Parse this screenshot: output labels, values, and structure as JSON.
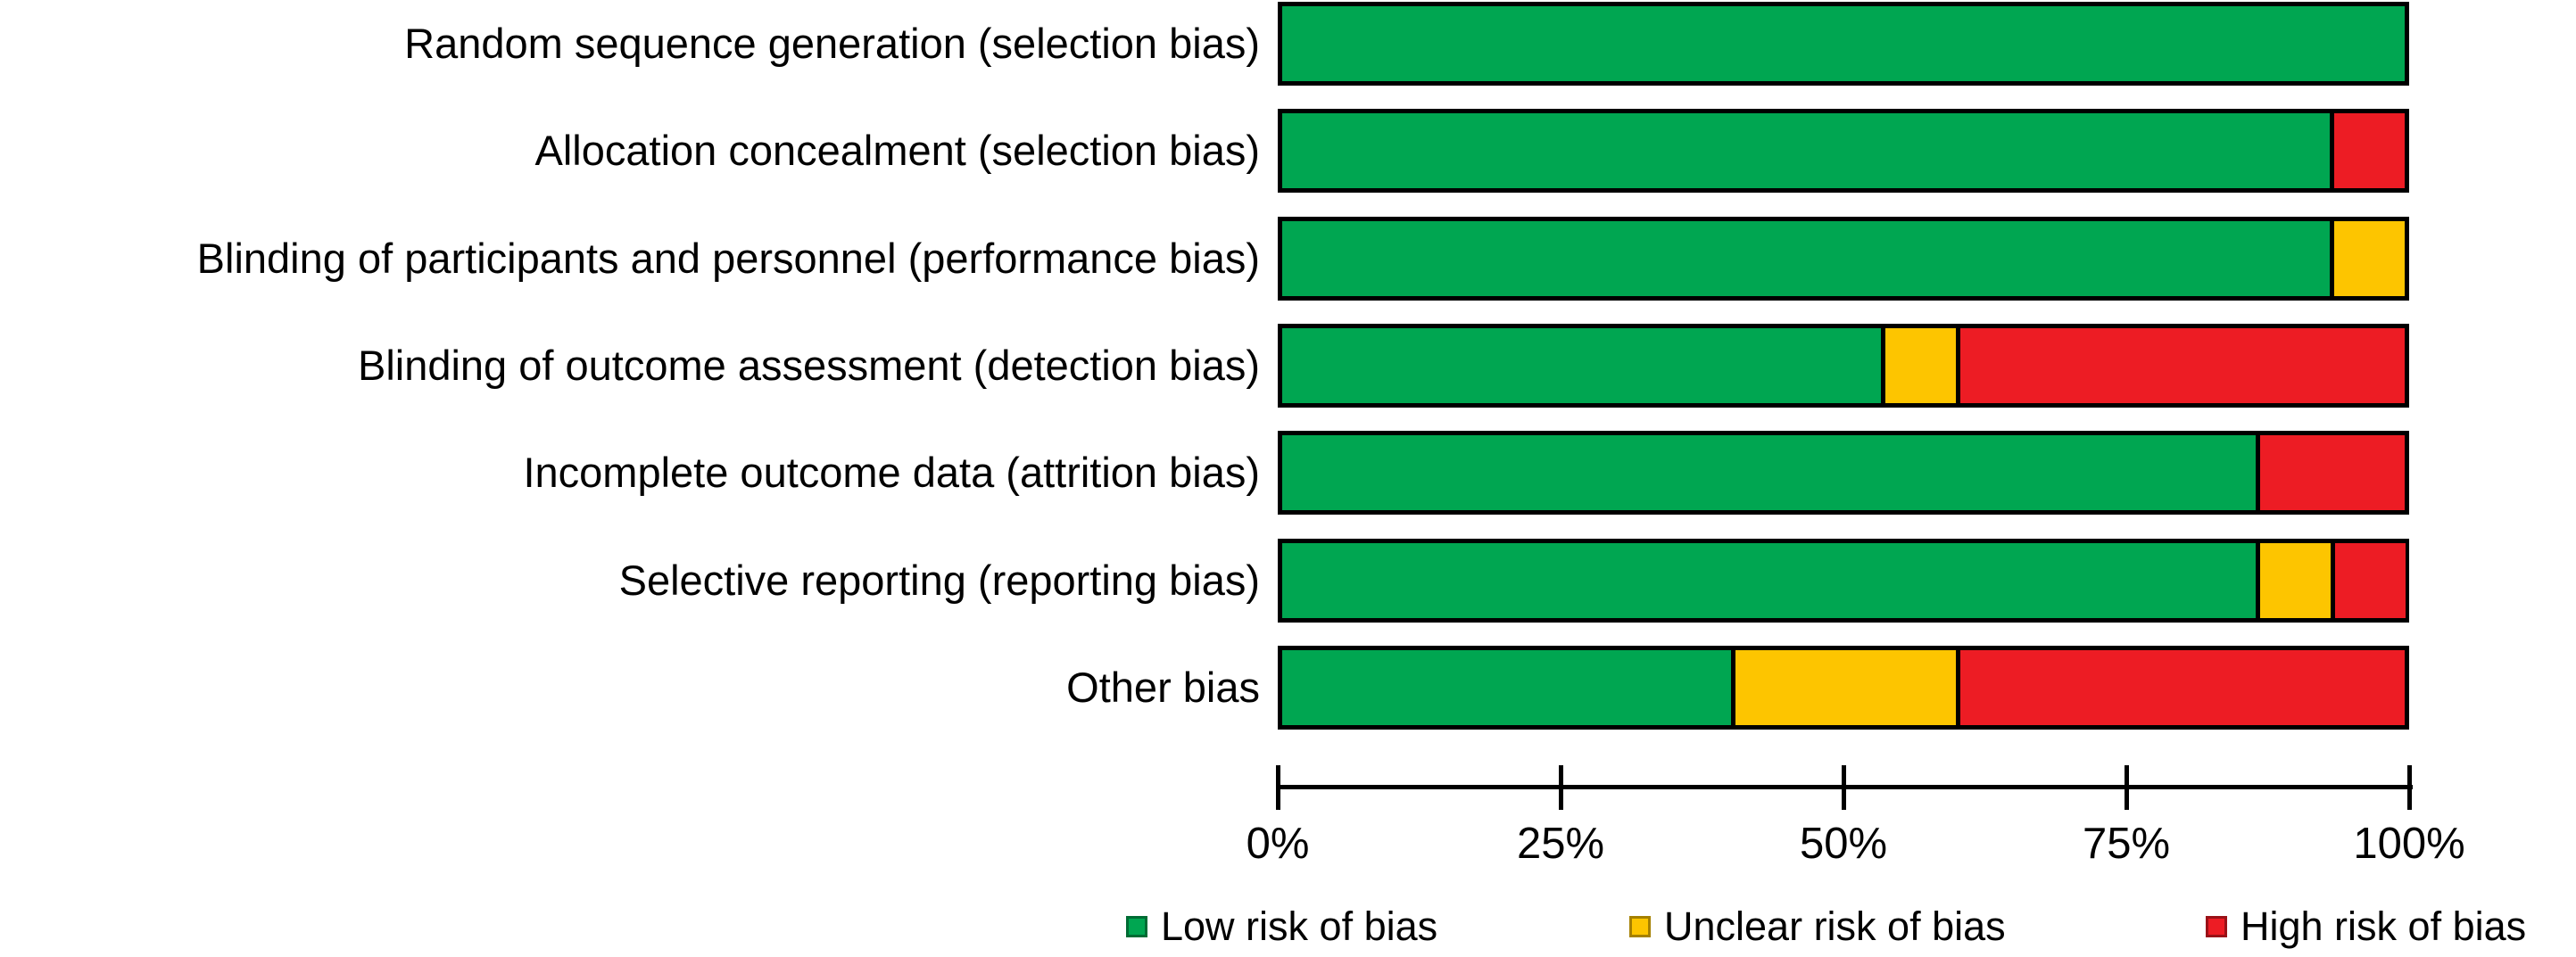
{
  "chart_data": {
    "type": "bar",
    "variant": "horizontal-stacked-percentage",
    "title": "",
    "xlabel": "",
    "ylabel": "",
    "xlim": [
      0,
      100
    ],
    "x_ticks": [
      "0%",
      "25%",
      "50%",
      "75%",
      "100%"
    ],
    "x_tick_values": [
      0,
      25,
      50,
      75,
      100
    ],
    "grid": false,
    "legend_position": "bottom",
    "categories": [
      "Random sequence generation (selection bias)",
      "Allocation concealment (selection bias)",
      "Blinding of participants and personnel (performance bias)",
      "Blinding of outcome assessment (detection bias)",
      "Incomplete outcome data (attrition bias)",
      "Selective reporting (reporting bias)",
      "Other bias"
    ],
    "series": [
      {
        "name": "Low risk of bias",
        "color": "#00A651",
        "values": [
          100,
          93.3,
          93.3,
          53.3,
          86.7,
          86.7,
          40
        ]
      },
      {
        "name": "Unclear risk of bias",
        "color": "#FDC500",
        "values": [
          0,
          0,
          6.7,
          6.7,
          0,
          6.7,
          20
        ]
      },
      {
        "name": "High risk of bias",
        "color": "#ED1C24",
        "values": [
          0,
          6.7,
          0,
          40,
          13.3,
          6.7,
          40
        ]
      }
    ]
  },
  "legend": {
    "items": [
      {
        "label": "Low risk of bias",
        "color": "#00A651"
      },
      {
        "label": "Unclear risk of bias",
        "color": "#FDC500"
      },
      {
        "label": "High risk of bias",
        "color": "#ED1C24"
      }
    ]
  },
  "colors": {
    "background": "#FFFFFF",
    "bar_border": "#000000",
    "axis": "#000000",
    "text": "#000000"
  }
}
